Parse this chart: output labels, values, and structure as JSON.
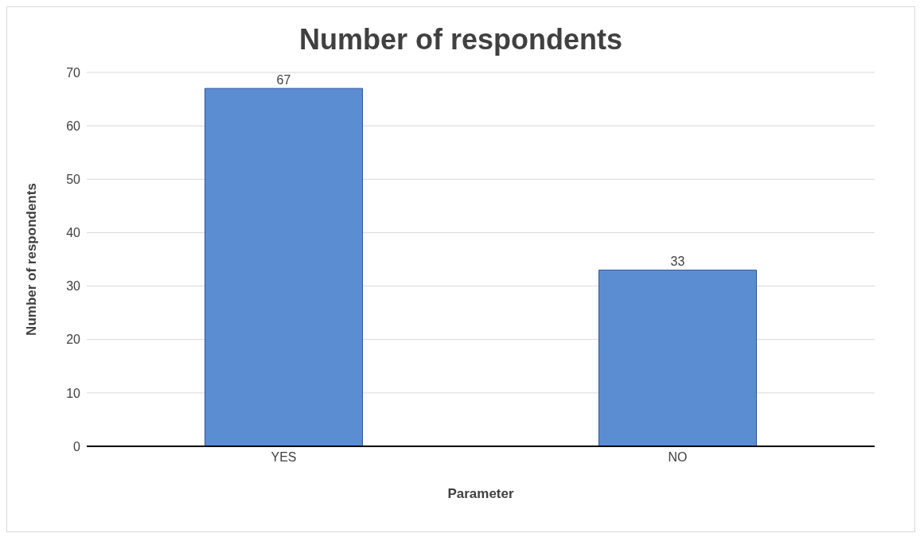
{
  "chart_data": {
    "type": "bar",
    "title": "Number of respondents",
    "xlabel": "Parameter",
    "ylabel": "Number of respondents",
    "categories": [
      "YES",
      "NO"
    ],
    "values": [
      67,
      33
    ],
    "color": "#5b8dd3",
    "ylim": [
      0,
      70
    ],
    "yticks": [
      0,
      10,
      20,
      30,
      40,
      50,
      60,
      70
    ],
    "grid": "y",
    "data_labels": true
  }
}
